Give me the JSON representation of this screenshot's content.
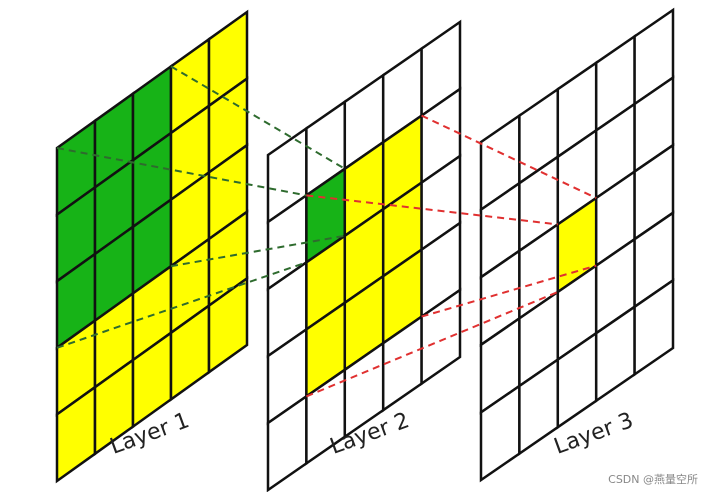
{
  "layers": [
    {
      "label": "Layer 1"
    },
    {
      "label": "Layer 2"
    },
    {
      "label": "Layer 3"
    }
  ],
  "watermark": "CSDN @燕量空所"
}
